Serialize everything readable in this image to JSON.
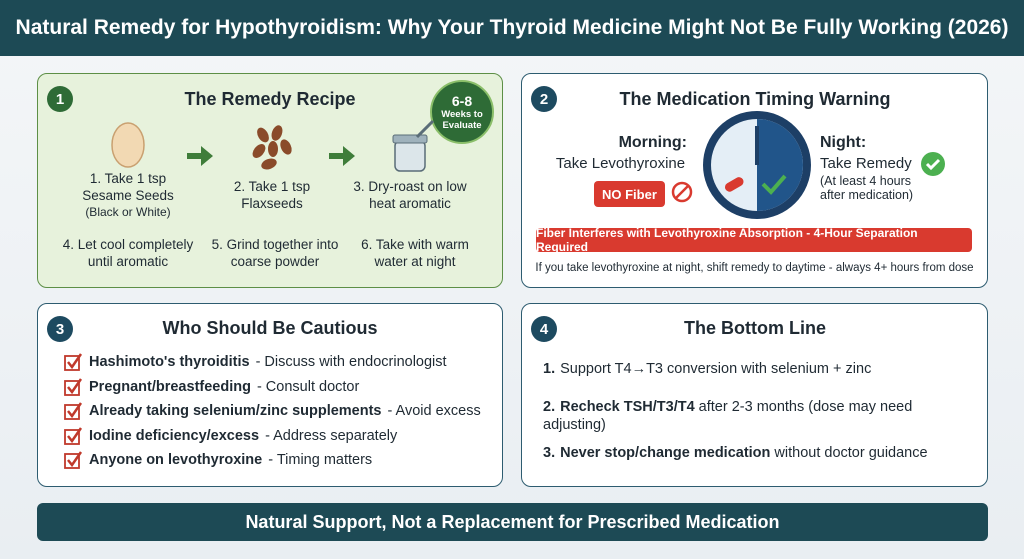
{
  "header": {
    "title": "Natural Remedy for Hypothyroidism: Why Your Thyroid Medicine Might Not Be Fully Working (2026)"
  },
  "panels": [
    {
      "number": "1",
      "title": "The Remedy Recipe",
      "badge": {
        "value": "6-8",
        "label": "Weeks to Evaluate"
      },
      "steps": [
        {
          "text": "1. Take 1 tsp Sesame Seeds",
          "note": "(Black or White)"
        },
        {
          "text": "2. Take 1 tsp Flaxseeds"
        },
        {
          "text": "3. Dry-roast on low heat aromatic"
        },
        {
          "text": "4. Let cool completely until aromatic"
        },
        {
          "text": "5. Grind together into coarse powder"
        },
        {
          "text": "6. Take with warm water at night"
        }
      ]
    },
    {
      "number": "2",
      "title": "The Medication Timing Warning",
      "morning": {
        "label": "Morning:",
        "text": "Take Levothyroxine",
        "tag": "NO Fiber"
      },
      "night": {
        "label": "Night:",
        "text": "Take Remedy",
        "note": "(At least 4 hours after medication)"
      },
      "warning": "Fiber Interferes with Levothyroxine Absorption - 4-Hour Separation Required",
      "note": "If you take levothyroxine at night, shift remedy to daytime - always 4+ hours from dose"
    },
    {
      "number": "3",
      "title": "Who Should Be Cautious",
      "items": [
        {
          "bold": "Hashimoto's thyroiditis",
          "rest": "- Discuss with endocrinologist"
        },
        {
          "bold": "Pregnant/breastfeeding",
          "rest": "- Consult doctor"
        },
        {
          "bold": "Already taking selenium/zinc supplements",
          "rest": "- Avoid excess"
        },
        {
          "bold": "Iodine deficiency/excess",
          "rest": "- Address separately"
        },
        {
          "bold": "Anyone on levothyroxine",
          "rest": "- Timing matters"
        }
      ]
    },
    {
      "number": "4",
      "title": "The Bottom Line",
      "items": [
        {
          "marker": "1.",
          "rest": "Support T4→T3 conversion with selenium + zinc"
        },
        {
          "marker": "2.",
          "bold": "Recheck TSH/T3/T4",
          "rest": "after 2-3 months (dose may need adjusting)"
        },
        {
          "marker": "3.",
          "bold": "Never stop/change medication",
          "rest": "without doctor guidance"
        }
      ]
    }
  ],
  "footer": {
    "text": "Natural Support, Not a Replacement for Prescribed Medication"
  }
}
